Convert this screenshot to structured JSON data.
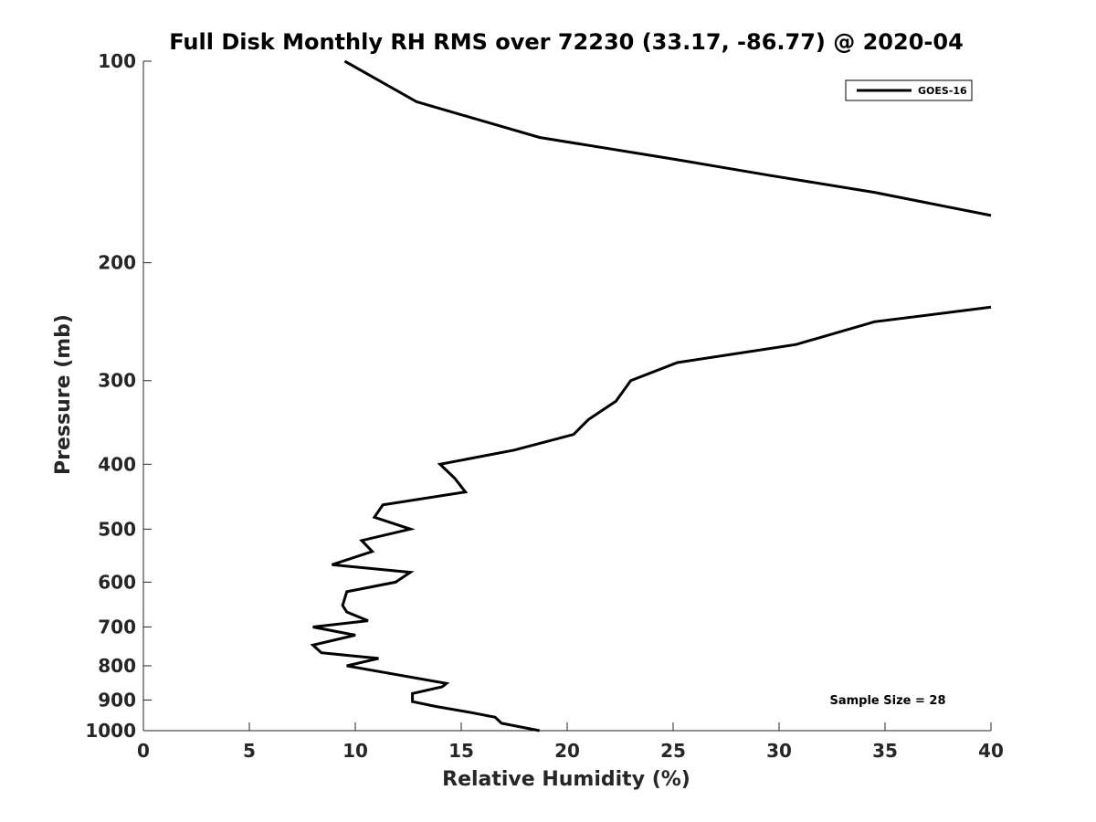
{
  "chart_data": {
    "type": "line",
    "title": "Full Disk Monthly RH RMS over 72230 (33.17, -86.77) @ 2020-04",
    "xlabel": "Relative Humidity (%)",
    "ylabel": "Pressure (mb)",
    "xlim": [
      0,
      40
    ],
    "ylim": [
      100,
      1000
    ],
    "yscale": "log",
    "yreversed": true,
    "grid": false,
    "legend_placement": "top-right",
    "x_ticks": [
      0,
      5,
      10,
      15,
      20,
      25,
      30,
      35,
      40
    ],
    "x_tick_labels": [
      "0",
      "5",
      "10",
      "15",
      "20",
      "25",
      "30",
      "35",
      "40"
    ],
    "y_ticks": [
      100,
      200,
      300,
      400,
      500,
      600,
      700,
      800,
      900,
      1000
    ],
    "y_tick_labels": [
      "100",
      "200",
      "300",
      "400",
      "500",
      "600",
      "700",
      "800",
      "900",
      "1000"
    ],
    "annotation": "Sample Size = 28",
    "series": [
      {
        "name": "GOES-16",
        "color": "#000000",
        "segments": [
          [
            {
              "x": 9.5,
              "y": 100
            },
            {
              "x": 12.9,
              "y": 115
            },
            {
              "x": 18.7,
              "y": 130
            },
            {
              "x": 25.0,
              "y": 140
            },
            {
              "x": 29.5,
              "y": 148
            },
            {
              "x": 34.5,
              "y": 157
            },
            {
              "x": 40.0,
              "y": 170
            }
          ],
          [
            {
              "x": 40.0,
              "y": 233
            },
            {
              "x": 34.5,
              "y": 245
            },
            {
              "x": 30.8,
              "y": 265
            },
            {
              "x": 25.2,
              "y": 282
            },
            {
              "x": 23.0,
              "y": 300
            },
            {
              "x": 22.3,
              "y": 322
            },
            {
              "x": 21.0,
              "y": 343
            },
            {
              "x": 20.3,
              "y": 361
            },
            {
              "x": 17.5,
              "y": 381
            },
            {
              "x": 14.0,
              "y": 400
            },
            {
              "x": 14.7,
              "y": 420
            },
            {
              "x": 15.2,
              "y": 440
            },
            {
              "x": 11.3,
              "y": 460
            },
            {
              "x": 10.9,
              "y": 480
            },
            {
              "x": 12.6,
              "y": 500
            },
            {
              "x": 10.3,
              "y": 520
            },
            {
              "x": 10.8,
              "y": 540
            },
            {
              "x": 8.9,
              "y": 565
            },
            {
              "x": 12.6,
              "y": 580
            },
            {
              "x": 11.9,
              "y": 600
            },
            {
              "x": 9.6,
              "y": 620
            },
            {
              "x": 9.4,
              "y": 650
            },
            {
              "x": 9.6,
              "y": 665
            },
            {
              "x": 10.6,
              "y": 685
            },
            {
              "x": 8.0,
              "y": 700
            },
            {
              "x": 10.0,
              "y": 720
            },
            {
              "x": 8.0,
              "y": 745
            },
            {
              "x": 8.4,
              "y": 765
            },
            {
              "x": 11.1,
              "y": 780
            },
            {
              "x": 9.6,
              "y": 800
            },
            {
              "x": 14.3,
              "y": 850
            },
            {
              "x": 14.1,
              "y": 860
            },
            {
              "x": 12.7,
              "y": 880
            },
            {
              "x": 12.7,
              "y": 905
            },
            {
              "x": 13.8,
              "y": 920
            },
            {
              "x": 15.5,
              "y": 940
            },
            {
              "x": 16.6,
              "y": 955
            },
            {
              "x": 16.9,
              "y": 975
            },
            {
              "x": 18.7,
              "y": 1000
            }
          ]
        ]
      }
    ]
  }
}
